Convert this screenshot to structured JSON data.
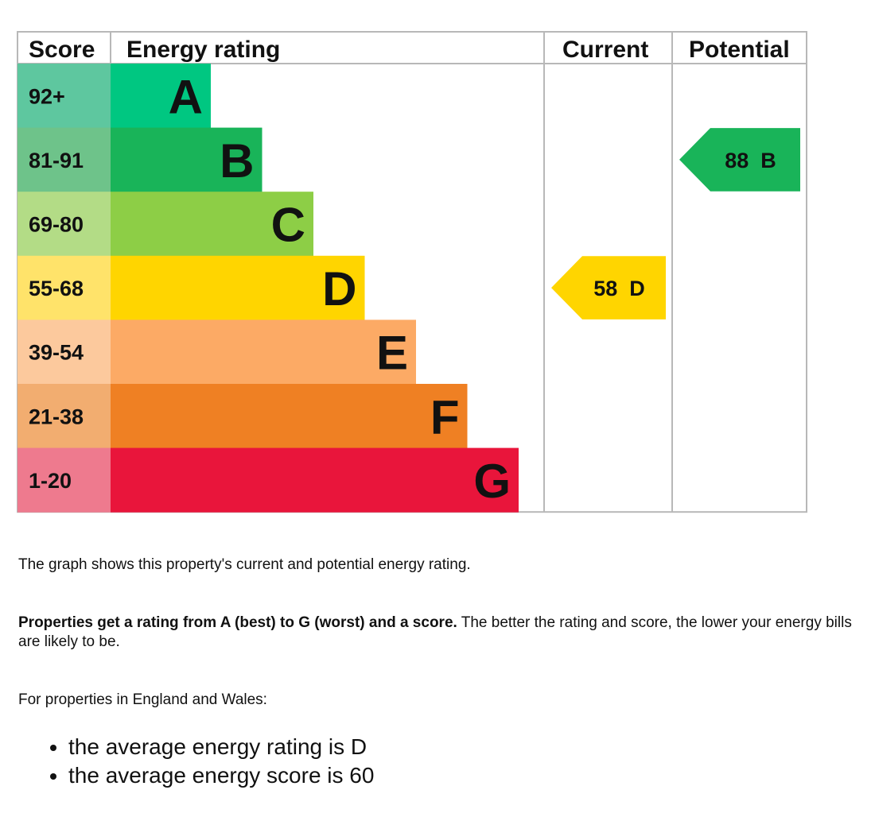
{
  "chart_data": {
    "type": "bar",
    "header": {
      "score": "Score",
      "rating": "Energy rating",
      "current": "Current",
      "potential": "Potential"
    },
    "bands": [
      {
        "score_range": "92+",
        "letter": "A",
        "color": "#00c781",
        "score_bg": "#5ec79f"
      },
      {
        "score_range": "81-91",
        "letter": "B",
        "color": "#19b459",
        "score_bg": "#6ec38a"
      },
      {
        "score_range": "69-80",
        "letter": "C",
        "color": "#8dce46",
        "score_bg": "#b3dc86"
      },
      {
        "score_range": "55-68",
        "letter": "D",
        "color": "#ffd500",
        "score_bg": "#ffe36a"
      },
      {
        "score_range": "39-54",
        "letter": "E",
        "color": "#fcaa65",
        "score_bg": "#fcc99d"
      },
      {
        "score_range": "21-38",
        "letter": "F",
        "color": "#ef8023",
        "score_bg": "#f2ad70"
      },
      {
        "score_range": "1-20",
        "letter": "G",
        "color": "#e9153b",
        "score_bg": "#ee7a8e"
      }
    ],
    "current": {
      "score": 58,
      "letter": "D",
      "label": "58  D",
      "color": "#ffd500"
    },
    "potential": {
      "score": 88,
      "letter": "B",
      "label": "88  B",
      "color": "#19b459"
    }
  },
  "text": {
    "graph_description": "The graph shows this property's current and potential energy rating.",
    "rating_bold": "Properties get a rating from A (best) to G (worst) and a score.",
    "rating_rest": " The better the rating and score, the lower your energy bills are likely to be.",
    "region_intro": "For properties in England and Wales:",
    "averages": [
      "the average energy rating is D",
      "the average energy score is 60"
    ]
  }
}
